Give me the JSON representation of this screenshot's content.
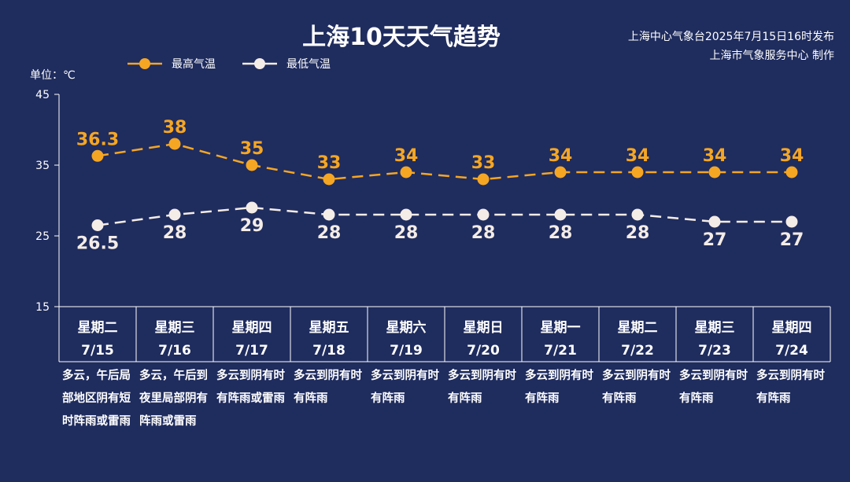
{
  "title": "上海10天天气趋势",
  "credit_line1": "上海中心气象台2025年7月15日16时发布",
  "credit_line2": "上海市气象服务中心 制作",
  "unit_label": "单位：℃",
  "colors": {
    "background": "#1f2c5e",
    "high": "#f5a623",
    "low": "#f4ece6",
    "axis": "#ffffff"
  },
  "chart_data": {
    "type": "line",
    "categories": [
      "7/15",
      "7/16",
      "7/17",
      "7/18",
      "7/19",
      "7/20",
      "7/21",
      "7/22",
      "7/23",
      "7/24"
    ],
    "weekdays": [
      "星期二",
      "星期三",
      "星期四",
      "星期五",
      "星期六",
      "星期日",
      "星期一",
      "星期二",
      "星期三",
      "星期四"
    ],
    "series": [
      {
        "name": "最高气温",
        "values": [
          36.3,
          38,
          35,
          33,
          34,
          33,
          34,
          34,
          34,
          34
        ],
        "labels": [
          "36.3",
          "38",
          "35",
          "33",
          "34",
          "33",
          "34",
          "34",
          "34",
          "34"
        ],
        "color": "#f5a623"
      },
      {
        "name": "最低气温",
        "values": [
          26.5,
          28,
          29,
          28,
          28,
          28,
          28,
          28,
          27,
          27
        ],
        "labels": [
          "26.5",
          "28",
          "29",
          "28",
          "28",
          "28",
          "28",
          "28",
          "27",
          "27"
        ],
        "color": "#f4ece6"
      }
    ],
    "yticks": [
      45,
      35,
      25,
      15
    ],
    "ylim": [
      15,
      45
    ],
    "descriptions": [
      "多云，午后局部地区阴有短时阵雨或雷雨",
      "多云，午后到夜里局部阴有阵雨或雷雨",
      "多云到阴有时有阵雨或雷雨",
      "多云到阴有时有阵雨",
      "多云到阴有时有阵雨",
      "多云到阴有时有阵雨",
      "多云到阴有时有阵雨",
      "多云到阴有时有阵雨",
      "多云到阴有时有阵雨",
      "多云到阴有时有阵雨"
    ],
    "legend": "top-left",
    "line_style": "dashed"
  }
}
